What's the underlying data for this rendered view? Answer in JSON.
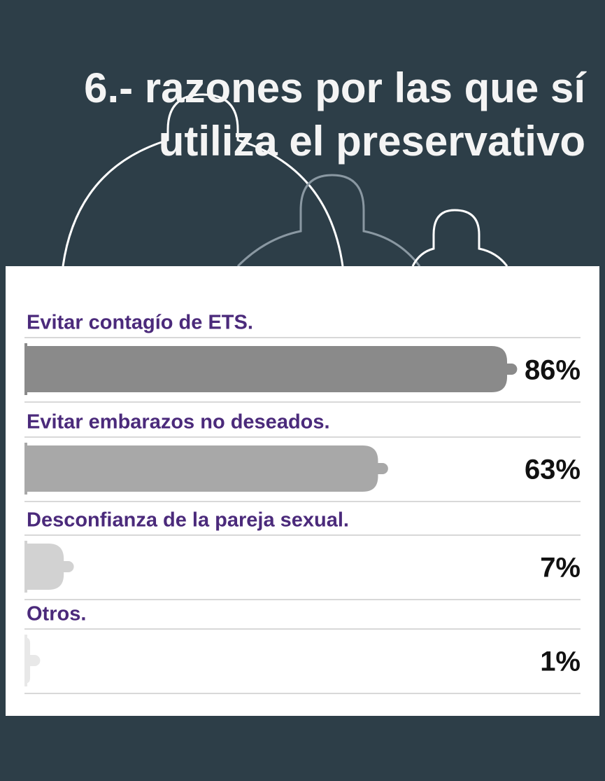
{
  "chart_data": {
    "type": "condom-bar",
    "title": "6.- razones por las que sí utiliza el preservativo",
    "categories": [
      "Evitar contagío de ETS.",
      "Evitar embarazos no deseados.",
      "Desconfianza de la pareja sexual.",
      "Otros."
    ],
    "values": [
      86,
      63,
      7,
      1
    ],
    "value_labels": [
      "86%",
      "63%",
      "7%",
      "1%"
    ],
    "colors": [
      "#8a8a8a",
      "#a8a8a8",
      "#d2d2d2",
      "#e8e8e8"
    ]
  }
}
